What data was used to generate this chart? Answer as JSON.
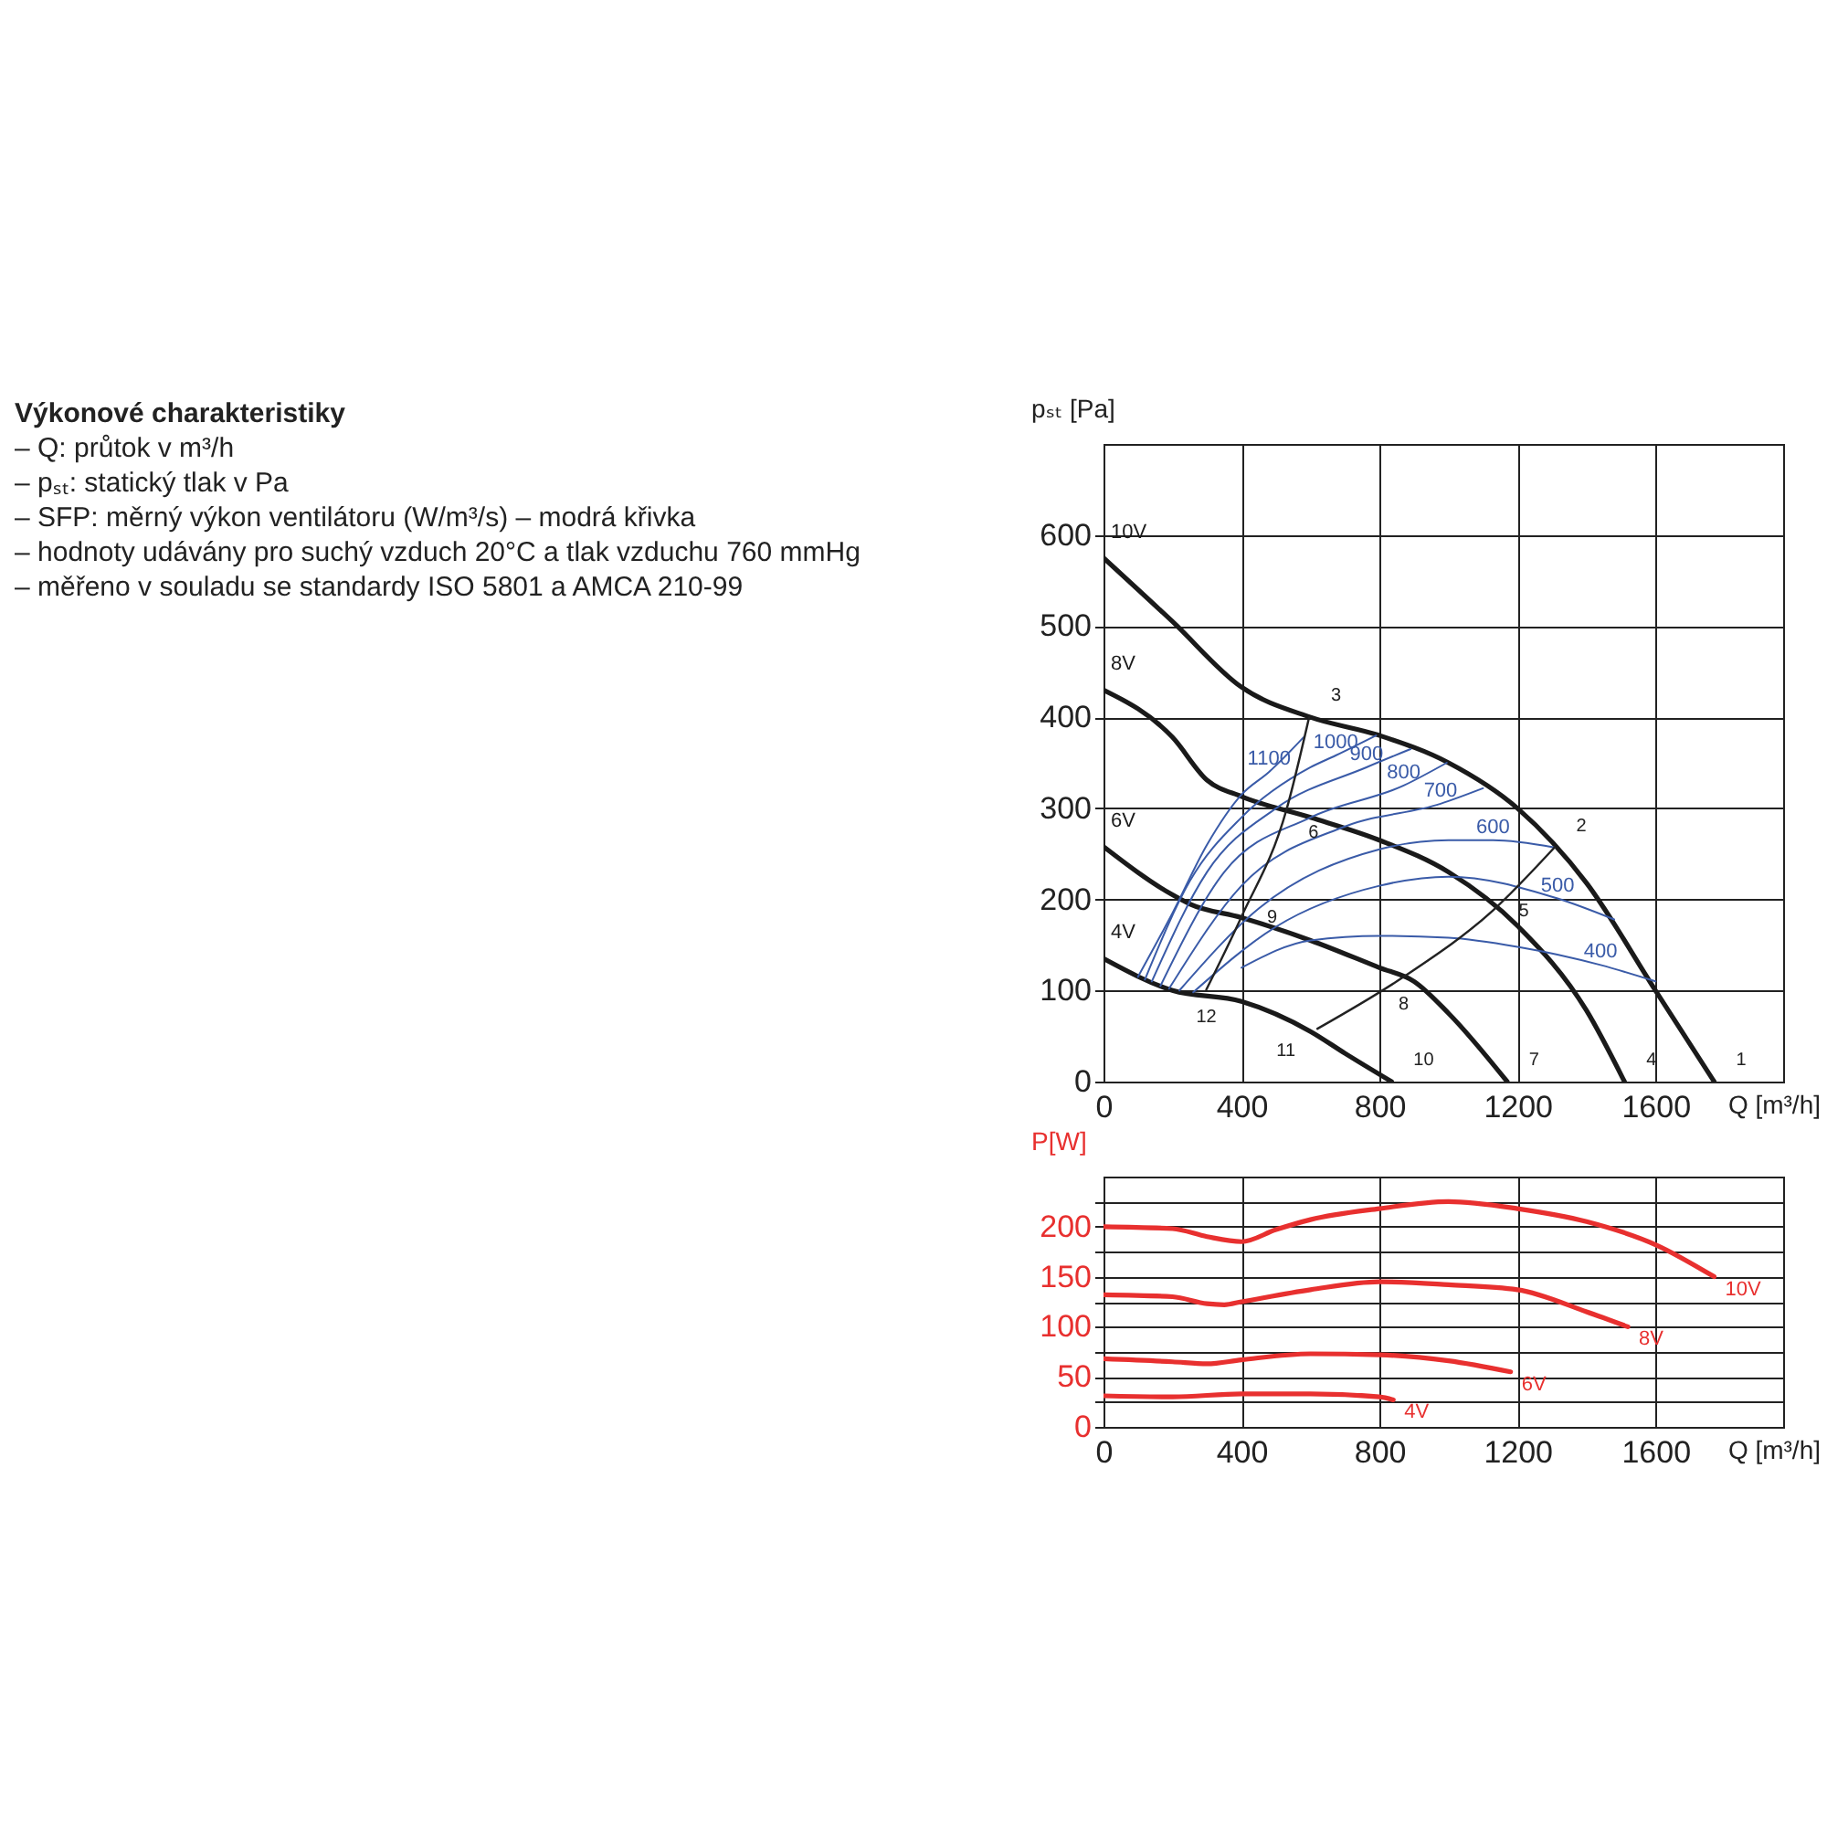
{
  "chart_data": [
    {
      "type": "other",
      "title": "Výkonové charakteristiky",
      "annotations": [
        "– Q: průtok v m³/h",
        "– pₛₜ: statický tlak v Pa",
        "– SFP: měrný výkon ventilátoru (W/m³/s) – modrá křivka",
        "– hodnoty udávány pro suchý vzduch 20°C a tlak vzduchu 760 mmHg",
        "– měřeno v souladu se standardy ISO 5801 a AMCA 210-99"
      ]
    },
    {
      "type": "line",
      "xlabel": "Q [m³/h]",
      "ylabel": "pₛₜ [Pa]",
      "xlim": [
        0,
        1970
      ],
      "ylim": [
        0,
        700
      ],
      "xticks": [
        0,
        400,
        800,
        1200,
        1600
      ],
      "yticks": [
        0,
        100,
        200,
        300,
        400,
        500,
        600
      ],
      "grid": true,
      "series": [
        {
          "name": "10V",
          "color": "#1a1a1a",
          "x": [
            0,
            200,
            400,
            600,
            800,
            1000,
            1200,
            1400,
            1600,
            1770
          ],
          "values": [
            575,
            505,
            433,
            400,
            380,
            350,
            300,
            218,
            100,
            0
          ]
        },
        {
          "name": "8V",
          "color": "#1a1a1a",
          "x": [
            0,
            200,
            300,
            400,
            600,
            800,
            1000,
            1200,
            1400,
            1510
          ],
          "values": [
            430,
            378,
            331,
            313,
            290,
            265,
            230,
            171,
            78,
            0
          ]
        },
        {
          "name": "6V",
          "color": "#1a1a1a",
          "x": [
            0,
            200,
            250,
            400,
            600,
            800,
            900,
            1000,
            1170
          ],
          "values": [
            258,
            205,
            195,
            180,
            155,
            125,
            110,
            75,
            0
          ]
        },
        {
          "name": "4V",
          "color": "#1a1a1a",
          "x": [
            0,
            200,
            400,
            600,
            700,
            835
          ],
          "values": [
            135,
            100,
            88,
            55,
            31,
            0
          ]
        },
        {
          "name": "1100",
          "color": "#3a5ba8",
          "x": [
            100,
            200,
            300,
            400,
            480,
            580
          ],
          "values": [
            115,
            185,
            260,
            315,
            340,
            378
          ]
        },
        {
          "name": "1000",
          "color": "#3a5ba8",
          "x": [
            120,
            250,
            400,
            600,
            673,
            790
          ],
          "values": [
            112,
            220,
            290,
            345,
            358,
            380
          ]
        },
        {
          "name": "900",
          "color": "#3a5ba8",
          "x": [
            140,
            300,
            500,
            762,
            890
          ],
          "values": [
            110,
            230,
            300,
            345,
            365
          ]
        },
        {
          "name": "800",
          "color": "#3a5ba8",
          "x": [
            165,
            350,
            600,
            870,
            995
          ],
          "values": [
            105,
            230,
            290,
            325,
            350
          ]
        },
        {
          "name": "700",
          "color": "#3a5ba8",
          "x": [
            190,
            400,
            700,
            977,
            1100
          ],
          "values": [
            102,
            215,
            280,
            305,
            322
          ]
        },
        {
          "name": "600",
          "color": "#3a5ba8",
          "x": [
            220,
            450,
            800,
            1000,
            1129,
            1307
          ],
          "values": [
            100,
            190,
            255,
            265,
            265,
            257
          ]
        },
        {
          "name": "500",
          "color": "#3a5ba8",
          "x": [
            260,
            500,
            800,
            1000,
            1316,
            1480
          ],
          "values": [
            98,
            170,
            215,
            225,
            201,
            178
          ]
        },
        {
          "name": "400",
          "color": "#3a5ba8",
          "x": [
            400,
            600,
            800,
            1000,
            1200,
            1441,
            1600
          ],
          "values": [
            125,
            155,
            160,
            158,
            148,
            128,
            110
          ]
        },
        {
          "color": "#222222",
          "x": [
            298,
            400,
            530,
            596
          ],
          "values": [
            101,
            181,
            298,
            400
          ]
        },
        {
          "color": "#222222",
          "x": [
            620,
            870,
            1129,
            1307
          ],
          "values": [
            58,
            115,
            188,
            257
          ]
        }
      ],
      "annotations": [
        {
          "text": "1",
          "x": 1770,
          "y": 0
        },
        {
          "text": "2",
          "x": 1307,
          "y": 257
        },
        {
          "text": "3",
          "x": 596,
          "y": 400
        },
        {
          "text": "4",
          "x": 1510,
          "y": 0
        },
        {
          "text": "5",
          "x": 1129,
          "y": 188
        },
        {
          "text": "6",
          "x": 530,
          "y": 298
        },
        {
          "text": "7",
          "x": 1170,
          "y": 0
        },
        {
          "text": "8",
          "x": 870,
          "y": 115
        },
        {
          "text": "9",
          "x": 400,
          "y": 181
        },
        {
          "text": "10",
          "x": 835,
          "y": 0
        },
        {
          "text": "11",
          "x": 620,
          "y": 58
        },
        {
          "text": "12",
          "x": 298,
          "y": 101
        }
      ]
    },
    {
      "type": "line",
      "xlabel": "Q [m³/h]",
      "ylabel": "P[W]",
      "xlim": [
        0,
        1970
      ],
      "ylim": [
        0,
        250
      ],
      "xticks": [
        0,
        400,
        800,
        1200,
        1600
      ],
      "yticks": [
        0,
        {
          "value": 25,
          "label": null
        },
        50,
        {
          "value": 75,
          "label": null
        },
        100,
        {
          "value": 125,
          "label": null
        },
        150,
        {
          "value": 175,
          "label": null
        },
        200,
        {
          "value": 225,
          "label": null
        }
      ],
      "grid": true,
      "series": [
        {
          "name": "10V",
          "color": "#e8302f",
          "x": [
            0,
            200,
            300,
            400,
            500,
            600,
            800,
            1000,
            1200,
            1400,
            1600,
            1770
          ],
          "values": [
            200,
            198,
            190,
            185,
            197,
            207,
            218,
            225,
            218,
            205,
            182,
            150
          ]
        },
        {
          "name": "8V",
          "color": "#e8302f",
          "x": [
            0,
            200,
            300,
            350,
            400,
            600,
            800,
            1000,
            1200,
            1400,
            1520
          ],
          "values": [
            132,
            130,
            123,
            122,
            125,
            137,
            145,
            142,
            137,
            115,
            100
          ]
        },
        {
          "name": "6V",
          "color": "#e8302f",
          "x": [
            0,
            200,
            300,
            400,
            600,
            800,
            1000,
            1180
          ],
          "values": [
            68,
            65,
            63,
            67,
            73,
            72,
            66,
            55
          ]
        },
        {
          "name": "4V",
          "color": "#e8302f",
          "x": [
            0,
            200,
            400,
            600,
            800,
            840
          ],
          "values": [
            31,
            30,
            33,
            33,
            30,
            27
          ]
        }
      ]
    }
  ]
}
